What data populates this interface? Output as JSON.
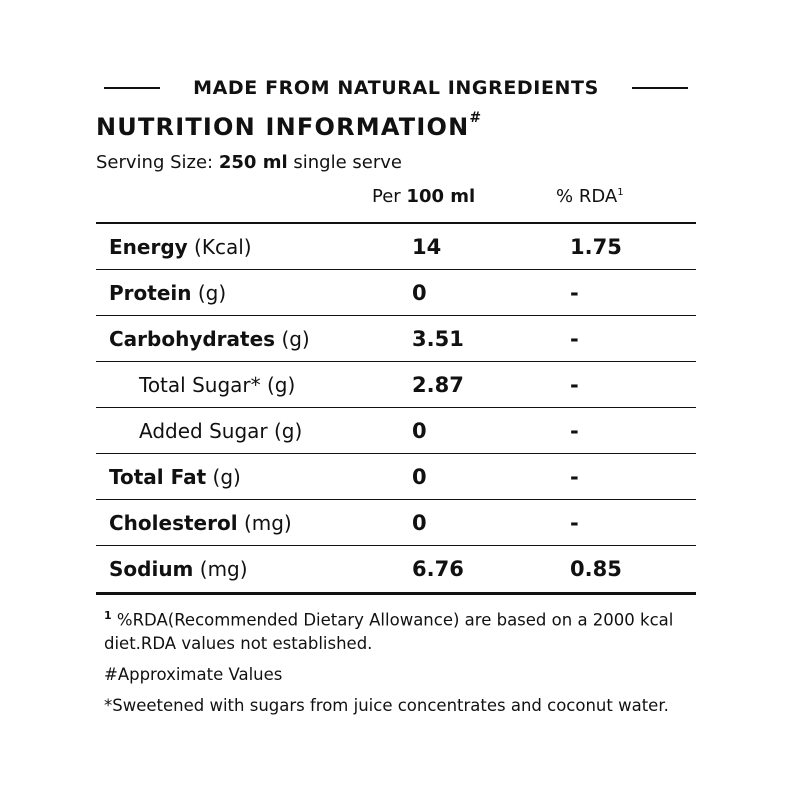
{
  "banner": {
    "text": "MADE FROM NATURAL INGREDIENTS"
  },
  "title": {
    "text": "NUTRITION INFORMATION",
    "mark": "#"
  },
  "serving": {
    "label": "Serving Size:",
    "value": "250 ml",
    "suffix": "single serve"
  },
  "columns": {
    "per_prefix": "Per",
    "per_value": "100 ml",
    "rda": "% RDA",
    "rda_mark": "1"
  },
  "rows": [
    {
      "name": "Energy",
      "unit": "(Kcal)",
      "value": "14",
      "rda": "1.75"
    },
    {
      "name": "Protein",
      "unit": "(g)",
      "value": "0",
      "rda": "-"
    },
    {
      "name": "Carbohydrates",
      "unit": "(g)",
      "value": "3.51",
      "rda": "-"
    },
    {
      "name": "Total Sugar*",
      "unit": "(g)",
      "value": "2.87",
      "rda": "-"
    },
    {
      "name": "Added Sugar",
      "unit": "(g)",
      "value": "0",
      "rda": "-"
    },
    {
      "name": "Total Fat",
      "unit": "(g)",
      "value": "0",
      "rda": "-"
    },
    {
      "name": "Cholesterol",
      "unit": "(mg)",
      "value": "0",
      "rda": "-"
    },
    {
      "name": "Sodium",
      "unit": "(mg)",
      "value": "6.76",
      "rda": "0.85"
    }
  ],
  "footnotes": {
    "rda_mark": "1",
    "rda_note": "%RDA(Recommended Dietary Allowance) are based on a 2000 kcal diet.RDA values not established.",
    "approx": "#Approximate Values",
    "sweetened": "*Sweetened with sugars from juice concentrates and coconut water."
  }
}
